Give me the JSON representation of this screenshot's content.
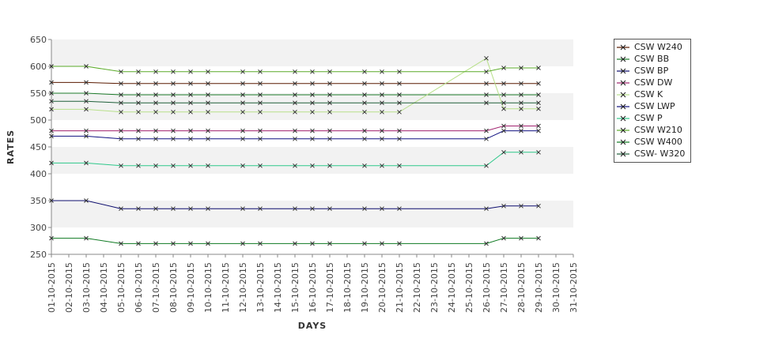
{
  "chart_data": {
    "type": "line",
    "title": "",
    "xlabel": "DAYS",
    "ylabel": "RATES",
    "ylim": [
      250,
      650
    ],
    "yticks": [
      250,
      300,
      350,
      400,
      450,
      500,
      550,
      600,
      650
    ],
    "xticks": [
      "01-10-2015",
      "02-10-2015",
      "03-10-2015",
      "04-10-2015",
      "05-10-2015",
      "06-10-2015",
      "07-10-2015",
      "08-10-2015",
      "09-10-2015",
      "10-10-2015",
      "11-10-2015",
      "12-10-2015",
      "13-10-2015",
      "14-10-2015",
      "15-10-2015",
      "16-10-2015",
      "17-10-2015",
      "18-10-2015",
      "19-10-2015",
      "20-10-2015",
      "21-10-2015",
      "22-10-2015",
      "23-10-2015",
      "24-10-2015",
      "25-10-2015",
      "26-10-2015",
      "27-10-2015",
      "28-10-2015",
      "29-10-2015",
      "30-10-2015",
      "31-10-2015"
    ],
    "x": [
      "01-10-2015",
      "03-10-2015",
      "05-10-2015",
      "06-10-2015",
      "07-10-2015",
      "08-10-2015",
      "09-10-2015",
      "10-10-2015",
      "12-10-2015",
      "13-10-2015",
      "15-10-2015",
      "16-10-2015",
      "17-10-2015",
      "19-10-2015",
      "20-10-2015",
      "21-10-2015",
      "26-10-2015",
      "27-10-2015",
      "28-10-2015",
      "29-10-2015"
    ],
    "grid": "horizontal alternating bands",
    "legend_position": "right",
    "series": [
      {
        "name": "CSW  W240",
        "color": "#5a1a00",
        "values": [
          570,
          570,
          568,
          568,
          568,
          568,
          568,
          568,
          568,
          568,
          568,
          568,
          568,
          568,
          568,
          568,
          568,
          568,
          568,
          568
        ]
      },
      {
        "name": "CSW BB",
        "color": "#1c7a2a",
        "values": [
          550,
          550,
          547,
          547,
          547,
          547,
          547,
          547,
          547,
          547,
          547,
          547,
          547,
          547,
          547,
          547,
          547,
          547,
          547,
          547
        ]
      },
      {
        "name": "CSW BP",
        "color": "#0d0d6e",
        "values": [
          350,
          350,
          335,
          335,
          335,
          335,
          335,
          335,
          335,
          335,
          335,
          335,
          335,
          335,
          335,
          335,
          335,
          340,
          340,
          340
        ]
      },
      {
        "name": "CSW DW",
        "color": "#a0206e",
        "values": [
          480,
          480,
          480,
          480,
          480,
          480,
          480,
          480,
          480,
          480,
          480,
          480,
          480,
          480,
          480,
          480,
          480,
          489,
          489,
          489
        ]
      },
      {
        "name": "CSW K",
        "color": "#b8e08a",
        "values": [
          520,
          520,
          515,
          515,
          515,
          515,
          515,
          515,
          515,
          515,
          515,
          515,
          515,
          515,
          515,
          515,
          615,
          521,
          521,
          521
        ]
      },
      {
        "name": "CSW LWP",
        "color": "#101080",
        "values": [
          470,
          470,
          465,
          465,
          465,
          465,
          465,
          465,
          465,
          465,
          465,
          465,
          465,
          465,
          465,
          465,
          465,
          480,
          480,
          480
        ]
      },
      {
        "name": "CSW P",
        "color": "#2ec88a",
        "values": [
          420,
          420,
          415,
          415,
          415,
          415,
          415,
          415,
          415,
          415,
          415,
          415,
          415,
          415,
          415,
          415,
          415,
          440,
          440,
          440
        ]
      },
      {
        "name": "CSW W210",
        "color": "#5aaa28",
        "values": [
          600,
          600,
          590,
          590,
          590,
          590,
          590,
          590,
          590,
          590,
          590,
          590,
          590,
          590,
          590,
          590,
          590,
          597,
          597,
          597
        ]
      },
      {
        "name": "CSW W400",
        "color": "#0f7a22",
        "values": [
          280,
          280,
          270,
          270,
          270,
          270,
          270,
          270,
          270,
          270,
          270,
          270,
          270,
          270,
          270,
          270,
          270,
          280,
          280,
          280
        ]
      },
      {
        "name": "CSW- W320",
        "color": "#1f5f3a",
        "values": [
          535,
          535,
          532,
          532,
          532,
          532,
          532,
          532,
          532,
          532,
          532,
          532,
          532,
          532,
          532,
          532,
          532,
          532,
          532,
          532
        ]
      }
    ]
  }
}
